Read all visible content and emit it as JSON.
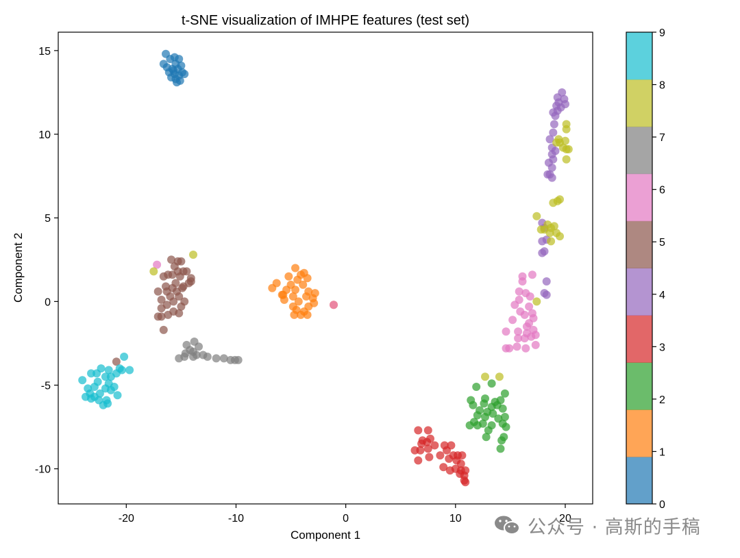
{
  "chart_data": {
    "type": "scatter",
    "title": "t-SNE visualization of IMHPE features (test set)",
    "xlabel": "Component 1",
    "ylabel": "Component 2",
    "xlim": [
      -26.2,
      22.5
    ],
    "ylim": [
      -12.1,
      16.1
    ],
    "xticks": [
      -20,
      -10,
      0,
      10,
      20
    ],
    "yticks": [
      -10,
      -5,
      0,
      5,
      10,
      15
    ],
    "xtick_labels": [
      "-20",
      "-10",
      "0",
      "10",
      "20"
    ],
    "ytick_labels": [
      "-10",
      "-5",
      "0",
      "5",
      "10",
      "15"
    ],
    "grid": false,
    "colormap": "tab10",
    "series": [
      {
        "name": "0",
        "color": "#1f77b4",
        "points": [
          [
            -16.4,
            14.8
          ],
          [
            -15.6,
            14.6
          ],
          [
            -15.2,
            14.5
          ],
          [
            -16.0,
            14.5
          ],
          [
            -15.5,
            14.2
          ],
          [
            -16.6,
            14.2
          ],
          [
            -15.0,
            14.1
          ],
          [
            -16.3,
            14.0
          ],
          [
            -15.8,
            13.9
          ],
          [
            -15.3,
            13.9
          ],
          [
            -14.9,
            13.7
          ],
          [
            -16.1,
            13.7
          ],
          [
            -15.6,
            13.6
          ],
          [
            -14.7,
            13.6
          ],
          [
            -15.2,
            13.5
          ],
          [
            -15.9,
            13.4
          ],
          [
            -15.5,
            13.3
          ],
          [
            -15.4,
            13.1
          ],
          [
            -15.1,
            13.2
          ],
          [
            -15.7,
            13.8
          ]
        ]
      },
      {
        "name": "1",
        "color": "#ff7f0e",
        "points": [
          [
            -4.6,
            2.0
          ],
          [
            -3.8,
            1.7
          ],
          [
            -4.1,
            1.6
          ],
          [
            -5.2,
            1.5
          ],
          [
            -3.5,
            1.4
          ],
          [
            -4.4,
            1.3
          ],
          [
            -6.3,
            1.1
          ],
          [
            -5.0,
            1.0
          ],
          [
            -3.9,
            1.0
          ],
          [
            -6.7,
            0.8
          ],
          [
            -5.4,
            0.7
          ],
          [
            -4.6,
            0.7
          ],
          [
            -3.4,
            0.6
          ],
          [
            -2.8,
            0.5
          ],
          [
            -5.8,
            0.4
          ],
          [
            -4.8,
            0.3
          ],
          [
            -3.6,
            0.3
          ],
          [
            -3.0,
            0.2
          ],
          [
            -5.6,
            0.1
          ],
          [
            -4.3,
            0.0
          ],
          [
            -2.9,
            -0.1
          ],
          [
            -4.8,
            -0.3
          ],
          [
            -3.4,
            -0.3
          ],
          [
            -4.5,
            -0.5
          ],
          [
            -3.8,
            -0.6
          ],
          [
            -4.7,
            -0.8
          ],
          [
            -3.5,
            -0.8
          ],
          [
            -4.1,
            -0.8
          ],
          [
            -1.1,
            -0.2
          ],
          [
            -5.7,
            0.4
          ]
        ]
      },
      {
        "name": "2",
        "color": "#2ca02c",
        "points": [
          [
            11.9,
            -5.1
          ],
          [
            13.3,
            -4.9
          ],
          [
            14.5,
            -5.5
          ],
          [
            12.7,
            -5.8
          ],
          [
            11.4,
            -5.9
          ],
          [
            13.6,
            -6.0
          ],
          [
            14.1,
            -5.9
          ],
          [
            11.6,
            -6.2
          ],
          [
            12.6,
            -6.1
          ],
          [
            13.3,
            -6.3
          ],
          [
            13.8,
            -6.2
          ],
          [
            12.2,
            -6.5
          ],
          [
            12.9,
            -6.6
          ],
          [
            14.3,
            -6.4
          ],
          [
            12.0,
            -6.8
          ],
          [
            12.7,
            -6.9
          ],
          [
            13.4,
            -6.7
          ],
          [
            14.5,
            -6.9
          ],
          [
            11.7,
            -7.2
          ],
          [
            12.5,
            -7.3
          ],
          [
            13.9,
            -7.0
          ],
          [
            14.3,
            -7.3
          ],
          [
            11.3,
            -7.4
          ],
          [
            12.0,
            -7.4
          ],
          [
            13.3,
            -7.4
          ],
          [
            14.6,
            -7.5
          ],
          [
            13.0,
            -7.7
          ],
          [
            14.4,
            -8.1
          ],
          [
            12.8,
            -8.1
          ],
          [
            14.2,
            -8.3
          ],
          [
            14.1,
            -8.8
          ]
        ]
      },
      {
        "name": "3",
        "color": "#d62728",
        "points": [
          [
            6.6,
            -7.7
          ],
          [
            7.5,
            -7.7
          ],
          [
            7.7,
            -8.2
          ],
          [
            7.0,
            -8.3
          ],
          [
            6.9,
            -8.5
          ],
          [
            7.4,
            -8.4
          ],
          [
            8.1,
            -8.6
          ],
          [
            9.0,
            -8.6
          ],
          [
            9.6,
            -8.6
          ],
          [
            6.3,
            -8.9
          ],
          [
            6.8,
            -8.9
          ],
          [
            7.5,
            -8.8
          ],
          [
            9.2,
            -8.9
          ],
          [
            8.6,
            -9.2
          ],
          [
            7.6,
            -9.3
          ],
          [
            9.8,
            -9.2
          ],
          [
            10.2,
            -9.2
          ],
          [
            10.6,
            -9.2
          ],
          [
            6.6,
            -9.5
          ],
          [
            9.4,
            -9.4
          ],
          [
            10.1,
            -9.5
          ],
          [
            10.5,
            -9.7
          ],
          [
            8.9,
            -9.9
          ],
          [
            9.5,
            -10.1
          ],
          [
            10.0,
            -10.0
          ],
          [
            10.5,
            -10.1
          ],
          [
            10.9,
            -10.1
          ],
          [
            10.4,
            -10.3
          ],
          [
            10.8,
            -10.4
          ],
          [
            10.8,
            -10.7
          ],
          [
            10.9,
            -10.8
          ]
        ]
      },
      {
        "name": "4",
        "color": "#9467bd",
        "points": [
          [
            19.7,
            12.5
          ],
          [
            19.3,
            12.2
          ],
          [
            19.9,
            12.1
          ],
          [
            19.4,
            11.9
          ],
          [
            20.0,
            11.8
          ],
          [
            19.2,
            11.7
          ],
          [
            19.6,
            11.6
          ],
          [
            19.3,
            11.4
          ],
          [
            18.9,
            11.3
          ],
          [
            19.1,
            11.1
          ],
          [
            19.0,
            10.6
          ],
          [
            18.9,
            10.1
          ],
          [
            18.6,
            9.7
          ],
          [
            18.8,
            9.2
          ],
          [
            19.1,
            9.0
          ],
          [
            18.8,
            8.8
          ],
          [
            18.9,
            8.5
          ],
          [
            18.5,
            8.3
          ],
          [
            18.8,
            8.0
          ],
          [
            18.6,
            7.6
          ],
          [
            18.8,
            7.4
          ],
          [
            18.4,
            7.6
          ],
          [
            17.9,
            4.7
          ],
          [
            18.1,
            4.4
          ],
          [
            17.9,
            3.6
          ],
          [
            18.3,
            3.7
          ],
          [
            18.1,
            3.0
          ],
          [
            17.9,
            2.9
          ],
          [
            18.3,
            1.2
          ],
          [
            18.1,
            0.5
          ],
          [
            18.3,
            0.4
          ]
        ]
      },
      {
        "name": "5",
        "color": "#8c564b",
        "points": [
          [
            -15.9,
            2.5
          ],
          [
            -15.3,
            2.4
          ],
          [
            -15.0,
            2.4
          ],
          [
            -15.6,
            2.1
          ],
          [
            -14.8,
            1.8
          ],
          [
            -14.5,
            1.8
          ],
          [
            -15.3,
            1.8
          ],
          [
            -15.8,
            1.6
          ],
          [
            -16.2,
            1.6
          ],
          [
            -16.6,
            1.5
          ],
          [
            -15.1,
            1.5
          ],
          [
            -14.1,
            1.2
          ],
          [
            -15.5,
            1.1
          ],
          [
            -16.4,
            0.9
          ],
          [
            -14.3,
            1.1
          ],
          [
            -14.8,
            0.9
          ],
          [
            -15.8,
            0.8
          ],
          [
            -17.1,
            0.6
          ],
          [
            -16.3,
            0.6
          ],
          [
            -15.4,
            0.6
          ],
          [
            -14.9,
            0.8
          ],
          [
            -16.0,
            0.3
          ],
          [
            -15.2,
            0.3
          ],
          [
            -16.8,
            0.1
          ],
          [
            -15.7,
            0.0
          ],
          [
            -14.7,
            0.0
          ],
          [
            -16.3,
            -0.2
          ],
          [
            -15.0,
            -0.3
          ],
          [
            -16.8,
            -0.4
          ],
          [
            -15.7,
            -0.6
          ],
          [
            -15.2,
            -0.7
          ],
          [
            -16.2,
            -0.8
          ],
          [
            -16.8,
            -0.9
          ],
          [
            -17.1,
            -0.9
          ],
          [
            -16.6,
            -1.7
          ],
          [
            -14.1,
            1.4
          ],
          [
            -20.9,
            -3.6
          ]
        ]
      },
      {
        "name": "6",
        "color": "#e377c2",
        "points": [
          [
            17.0,
            1.6
          ],
          [
            16.1,
            1.5
          ],
          [
            16.1,
            1.2
          ],
          [
            15.8,
            0.6
          ],
          [
            16.4,
            0.5
          ],
          [
            15.8,
            0.1
          ],
          [
            16.8,
            0.3
          ],
          [
            15.4,
            -0.2
          ],
          [
            16.7,
            -0.3
          ],
          [
            15.9,
            -0.6
          ],
          [
            17.0,
            -0.7
          ],
          [
            16.3,
            -0.8
          ],
          [
            17.1,
            -1.0
          ],
          [
            15.2,
            -1.1
          ],
          [
            16.7,
            -1.3
          ],
          [
            16.5,
            -1.5
          ],
          [
            17.1,
            -1.7
          ],
          [
            15.7,
            -1.8
          ],
          [
            16.5,
            -1.9
          ],
          [
            14.6,
            -1.8
          ],
          [
            17.3,
            -2.0
          ],
          [
            15.7,
            -2.2
          ],
          [
            16.3,
            -2.2
          ],
          [
            16.9,
            -2.1
          ],
          [
            15.6,
            -2.7
          ],
          [
            14.6,
            -2.8
          ],
          [
            14.9,
            -2.8
          ],
          [
            16.4,
            -2.8
          ],
          [
            17.3,
            -2.6
          ],
          [
            -17.2,
            2.2
          ],
          [
            -1.1,
            -0.2
          ]
        ]
      },
      {
        "name": "7",
        "color": "#7f7f7f",
        "points": [
          [
            -14.5,
            -2.6
          ],
          [
            -13.8,
            -2.4
          ],
          [
            -13.4,
            -2.7
          ],
          [
            -14.2,
            -2.9
          ],
          [
            -13.9,
            -3.0
          ],
          [
            -14.6,
            -3.1
          ],
          [
            -13.6,
            -3.2
          ],
          [
            -13.0,
            -3.2
          ],
          [
            -12.6,
            -3.3
          ],
          [
            -14.7,
            -3.3
          ],
          [
            -13.9,
            -3.3
          ],
          [
            -11.8,
            -3.4
          ],
          [
            -11.1,
            -3.4
          ],
          [
            -10.5,
            -3.5
          ],
          [
            -10.1,
            -3.5
          ],
          [
            -9.8,
            -3.5
          ],
          [
            -15.2,
            -3.4
          ]
        ]
      },
      {
        "name": "8",
        "color": "#bcbd22",
        "points": [
          [
            20.1,
            10.6
          ],
          [
            20.1,
            10.3
          ],
          [
            19.4,
            9.7
          ],
          [
            20.0,
            9.6
          ],
          [
            19.5,
            9.5
          ],
          [
            19.2,
            9.5
          ],
          [
            20.3,
            9.1
          ],
          [
            20.1,
            9.1
          ],
          [
            19.8,
            9.2
          ],
          [
            20.1,
            8.5
          ],
          [
            19.5,
            6.1
          ],
          [
            19.3,
            6.0
          ],
          [
            18.9,
            5.9
          ],
          [
            17.4,
            5.1
          ],
          [
            18.4,
            4.6
          ],
          [
            19.0,
            4.5
          ],
          [
            18.7,
            4.4
          ],
          [
            18.1,
            4.3
          ],
          [
            18.6,
            4.1
          ],
          [
            19.2,
            4.1
          ],
          [
            19.5,
            3.9
          ],
          [
            17.8,
            4.3
          ],
          [
            18.7,
            3.6
          ],
          [
            17.4,
            0.0
          ],
          [
            12.7,
            -4.5
          ],
          [
            14.0,
            -4.5
          ],
          [
            -13.9,
            2.8
          ],
          [
            -17.5,
            1.8
          ]
        ]
      },
      {
        "name": "9",
        "color": "#17becf",
        "points": [
          [
            -20.2,
            -3.3
          ],
          [
            -22.3,
            -4.0
          ],
          [
            -21.6,
            -4.1
          ],
          [
            -20.6,
            -4.0
          ],
          [
            -19.7,
            -4.1
          ],
          [
            -22.7,
            -4.3
          ],
          [
            -23.2,
            -4.3
          ],
          [
            -21.9,
            -4.5
          ],
          [
            -21.4,
            -4.5
          ],
          [
            -20.9,
            -4.3
          ],
          [
            -24.0,
            -4.7
          ],
          [
            -22.6,
            -4.8
          ],
          [
            -21.6,
            -4.9
          ],
          [
            -23.5,
            -5.2
          ],
          [
            -22.9,
            -5.1
          ],
          [
            -21.9,
            -5.2
          ],
          [
            -21.1,
            -5.1
          ],
          [
            -22.4,
            -5.5
          ],
          [
            -23.7,
            -5.7
          ],
          [
            -21.4,
            -5.3
          ],
          [
            -20.8,
            -5.6
          ],
          [
            -23.2,
            -5.8
          ],
          [
            -22.5,
            -5.9
          ],
          [
            -21.8,
            -5.9
          ],
          [
            -23.3,
            -5.5
          ],
          [
            -22.1,
            -6.2
          ],
          [
            -21.7,
            -6.1
          ],
          [
            -22.9,
            -5.7
          ],
          [
            -20.4,
            -4.1
          ]
        ]
      }
    ],
    "colorbar": {
      "ticks": [
        "0",
        "1",
        "2",
        "3",
        "4",
        "5",
        "6",
        "7",
        "8",
        "9"
      ],
      "colors": [
        "#1f77b4",
        "#ff7f0e",
        "#2ca02c",
        "#d62728",
        "#9467bd",
        "#8c564b",
        "#e377c2",
        "#7f7f7f",
        "#bcbd22",
        "#17becf"
      ],
      "position": "right"
    }
  },
  "watermark": {
    "text": "公众号 · 高斯的手稿",
    "icon": "wechat-icon"
  }
}
